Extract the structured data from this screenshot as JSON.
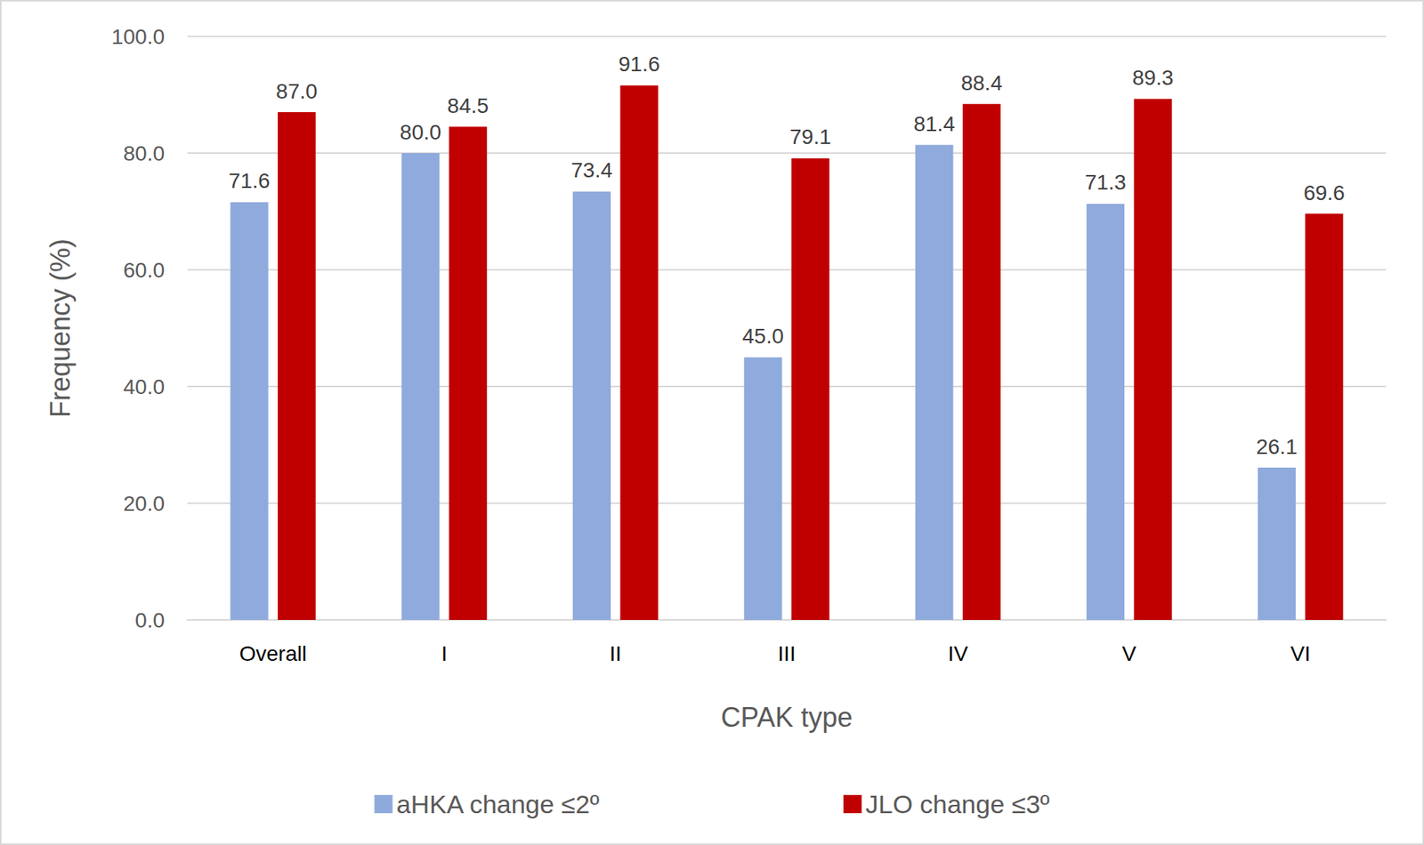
{
  "chart_data": {
    "type": "bar",
    "x_label": "CPAK type",
    "y_label": "Frequency (%)",
    "categories": [
      "Overall",
      "I",
      "II",
      "III",
      "IV",
      "V",
      "VI"
    ],
    "series": [
      {
        "name": "aHKA change ≤2º",
        "color": "#8faadc",
        "values": [
          71.6,
          80.0,
          73.4,
          45.0,
          81.4,
          71.3,
          26.1
        ],
        "value_labels": [
          "71.6",
          "80.0",
          "73.4",
          "45.0",
          "81.4",
          "71.3",
          "26.1"
        ]
      },
      {
        "name": "JLO change ≤3º",
        "color": "#c00000",
        "values": [
          87.0,
          84.5,
          91.6,
          79.1,
          88.4,
          89.3,
          69.6
        ],
        "value_labels": [
          "87.0",
          "84.5",
          "91.6",
          "79.1",
          "88.4",
          "89.3",
          "69.6"
        ]
      }
    ],
    "ylim": [
      0,
      100
    ],
    "yticks": [
      {
        "value": 0,
        "label": "0.0"
      },
      {
        "value": 20,
        "label": "20.0"
      },
      {
        "value": 40,
        "label": "40.0"
      },
      {
        "value": 60,
        "label": "60.0"
      },
      {
        "value": 80,
        "label": "80.0"
      },
      {
        "value": 100,
        "label": "100.0"
      }
    ],
    "grid": true,
    "legend": "bottom",
    "data_labels": true
  }
}
